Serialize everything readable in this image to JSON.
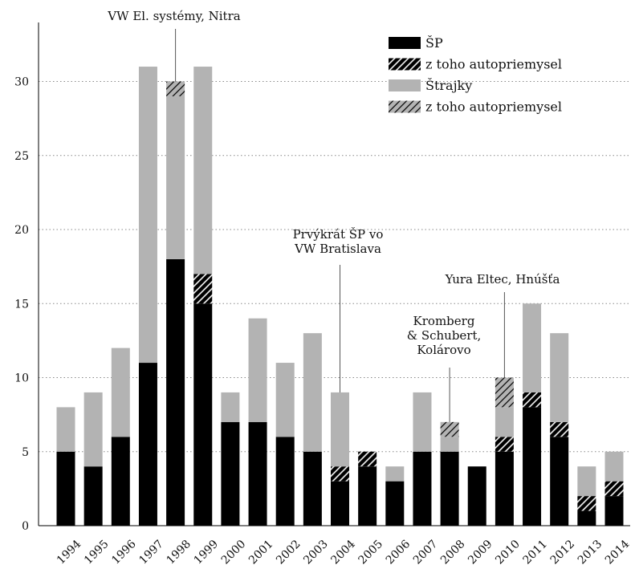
{
  "chart_data": {
    "type": "bar",
    "stacked": true,
    "categories": [
      "1994",
      "1995",
      "1996",
      "1997",
      "1998",
      "1999",
      "2000",
      "2001",
      "2002",
      "2003",
      "2004",
      "2005",
      "2006",
      "2007",
      "2008",
      "2009",
      "2010",
      "2011",
      "2012",
      "2013",
      "2014"
    ],
    "series": [
      {
        "name": "ŠP",
        "color": "#000000",
        "pattern": "solid",
        "values": [
          5,
          4,
          6,
          11,
          18,
          15,
          7,
          7,
          6,
          5,
          3,
          4,
          3,
          5,
          5,
          4,
          5,
          8,
          6,
          1,
          2
        ]
      },
      {
        "name": "z toho autopriemysel",
        "color": "#000000",
        "pattern": "hatch-dark",
        "values": [
          0,
          0,
          0,
          0,
          0,
          2,
          0,
          0,
          0,
          0,
          1,
          1,
          0,
          0,
          0,
          0,
          1,
          1,
          1,
          1,
          1
        ]
      },
      {
        "name": "Štrajky",
        "color": "#b3b3b3",
        "pattern": "solid",
        "values": [
          3,
          5,
          6,
          20,
          11,
          14,
          2,
          7,
          5,
          8,
          5,
          0,
          1,
          4,
          1,
          0,
          2,
          6,
          6,
          2,
          2
        ]
      },
      {
        "name": "z toho autopriemysel",
        "color": "#b3b3b3",
        "pattern": "hatch-light",
        "values": [
          0,
          0,
          0,
          0,
          1,
          0,
          0,
          0,
          0,
          0,
          0,
          0,
          0,
          0,
          1,
          0,
          2,
          0,
          0,
          0,
          0
        ]
      }
    ],
    "yticks": [
      0,
      5,
      10,
      15,
      20,
      25,
      30
    ],
    "ylim": [
      0,
      34
    ],
    "grid": "y-dotted",
    "legend_position": "top-right",
    "annotations": [
      {
        "id": "vw-nitra",
        "lines": [
          "VW El. systémy, Nitra"
        ],
        "category": "1998",
        "y": 30
      },
      {
        "id": "vw-bratislava",
        "lines": [
          "Prvýkrát ŠP vo",
          "VW Bratislava"
        ],
        "category": "2004",
        "y": 9
      },
      {
        "id": "kromberg",
        "lines": [
          "Kromberg",
          "& Schubert,",
          "Kolárovo"
        ],
        "category": "2008",
        "y": 7
      },
      {
        "id": "yura",
        "lines": [
          "Yura Eltec, Hnúšťa"
        ],
        "category": "2010",
        "y": 10
      }
    ]
  }
}
